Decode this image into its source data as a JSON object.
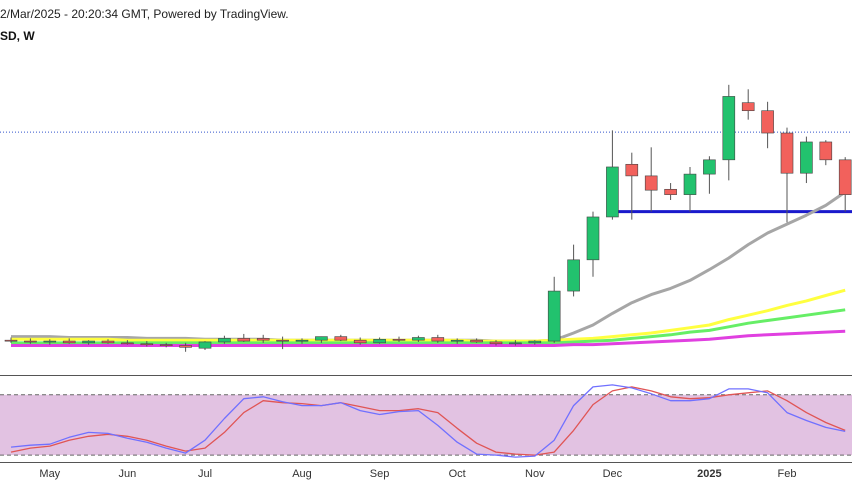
{
  "chart_data": [
    {
      "type": "candlestick",
      "title": "2/Mar/2025 - 20:20:34 GMT, Powered by TradingView.",
      "subtitle": "SD, W",
      "categories": [
        null,
        null,
        "May",
        null,
        null,
        null,
        "Jun",
        null,
        null,
        null,
        "Jul",
        null,
        null,
        null,
        null,
        "Aug",
        null,
        null,
        null,
        "Sep",
        null,
        null,
        null,
        "Oct",
        null,
        null,
        null,
        "Nov",
        null,
        null,
        null,
        "Dec",
        null,
        null,
        null,
        null,
        "2025",
        null,
        null,
        null,
        "Feb",
        null,
        null,
        null
      ],
      "open": [
        0.53,
        0.52,
        0.51,
        0.52,
        0.5,
        0.52,
        0.5,
        0.49,
        0.48,
        0.47,
        0.44,
        0.51,
        0.55,
        0.55,
        0.53,
        0.52,
        0.53,
        0.57,
        0.53,
        0.5,
        0.54,
        0.53,
        0.56,
        0.52,
        0.53,
        0.51,
        0.49,
        0.5,
        0.52,
        1.08,
        1.43,
        1.91,
        2.5,
        2.37,
        2.22,
        2.16,
        2.39,
        2.55,
        3.19,
        3.1,
        2.85,
        2.4,
        2.75,
        2.55
      ],
      "high": [
        0.56,
        0.55,
        0.54,
        0.55,
        0.53,
        0.54,
        0.53,
        0.52,
        0.5,
        0.5,
        0.52,
        0.58,
        0.6,
        0.59,
        0.57,
        0.55,
        0.57,
        0.59,
        0.56,
        0.56,
        0.57,
        0.58,
        0.59,
        0.55,
        0.55,
        0.53,
        0.53,
        0.53,
        1.24,
        1.6,
        1.97,
        2.88,
        2.63,
        2.69,
        2.29,
        2.47,
        2.59,
        3.39,
        3.34,
        3.2,
        2.91,
        2.81,
        2.77,
        2.58
      ],
      "low": [
        0.5,
        0.49,
        0.48,
        0.49,
        0.48,
        0.49,
        0.48,
        0.46,
        0.45,
        0.4,
        0.42,
        0.49,
        0.51,
        0.5,
        0.43,
        0.49,
        0.5,
        0.52,
        0.48,
        0.49,
        0.51,
        0.51,
        0.5,
        0.49,
        0.5,
        0.47,
        0.47,
        0.48,
        0.5,
        1.02,
        1.24,
        1.88,
        1.88,
        1.97,
        2.1,
        1.97,
        2.17,
        2.32,
        3.0,
        2.68,
        1.85,
        2.29,
        2.49,
        1.97
      ],
      "close": [
        0.52,
        0.51,
        0.52,
        0.5,
        0.52,
        0.5,
        0.49,
        0.48,
        0.47,
        0.45,
        0.51,
        0.55,
        0.52,
        0.53,
        0.52,
        0.53,
        0.57,
        0.53,
        0.5,
        0.54,
        0.53,
        0.56,
        0.52,
        0.53,
        0.51,
        0.49,
        0.5,
        0.52,
        1.08,
        1.43,
        1.91,
        2.47,
        2.37,
        2.21,
        2.16,
        2.39,
        2.55,
        3.26,
        3.1,
        2.85,
        2.4,
        2.75,
        2.55,
        2.16
      ],
      "up_color": "#22c26e",
      "down_color": "#f2615c",
      "lines": [
        {
          "color": "#a6a6a6",
          "values": [
            0.57,
            0.57,
            0.57,
            0.56,
            0.56,
            0.56,
            0.56,
            0.55,
            0.55,
            0.55,
            0.54,
            0.54,
            0.54,
            0.54,
            0.53,
            0.53,
            0.53,
            0.53,
            0.53,
            0.53,
            0.53,
            0.53,
            0.53,
            0.53,
            0.53,
            0.52,
            0.52,
            0.52,
            0.53,
            0.61,
            0.7,
            0.83,
            0.95,
            1.04,
            1.11,
            1.2,
            1.32,
            1.45,
            1.6,
            1.73,
            1.83,
            1.93,
            2.04,
            2.19
          ]
        },
        {
          "color": "#ffff40",
          "values": [
            0.54,
            0.54,
            0.54,
            0.54,
            0.54,
            0.54,
            0.53,
            0.53,
            0.53,
            0.53,
            0.53,
            0.53,
            0.53,
            0.53,
            0.53,
            0.53,
            0.53,
            0.53,
            0.53,
            0.53,
            0.53,
            0.53,
            0.53,
            0.53,
            0.52,
            0.52,
            0.52,
            0.52,
            0.53,
            0.54,
            0.55,
            0.57,
            0.59,
            0.61,
            0.64,
            0.67,
            0.7,
            0.76,
            0.81,
            0.86,
            0.92,
            0.97,
            1.03,
            1.09
          ]
        },
        {
          "color": "#66ee66",
          "values": [
            0.5,
            0.5,
            0.5,
            0.5,
            0.5,
            0.5,
            0.5,
            0.5,
            0.5,
            0.5,
            0.5,
            0.5,
            0.5,
            0.5,
            0.5,
            0.5,
            0.5,
            0.5,
            0.5,
            0.5,
            0.5,
            0.5,
            0.5,
            0.5,
            0.5,
            0.5,
            0.5,
            0.5,
            0.5,
            0.51,
            0.52,
            0.53,
            0.55,
            0.57,
            0.59,
            0.62,
            0.64,
            0.68,
            0.72,
            0.75,
            0.78,
            0.81,
            0.84,
            0.87
          ]
        },
        {
          "color": "#e040e0",
          "values": [
            0.47,
            0.47,
            0.47,
            0.47,
            0.47,
            0.47,
            0.47,
            0.47,
            0.47,
            0.47,
            0.47,
            0.47,
            0.47,
            0.47,
            0.47,
            0.47,
            0.47,
            0.47,
            0.47,
            0.47,
            0.47,
            0.47,
            0.47,
            0.47,
            0.47,
            0.47,
            0.47,
            0.47,
            0.47,
            0.48,
            0.48,
            0.49,
            0.5,
            0.51,
            0.52,
            0.53,
            0.54,
            0.56,
            0.58,
            0.59,
            0.6,
            0.61,
            0.62,
            0.63
          ]
        }
      ],
      "levels": [
        {
          "value": 2.86,
          "color": "#3355cc",
          "dashed": true,
          "start": 0
        },
        {
          "value": 1.97,
          "color": "#1a1acc",
          "dashed": false,
          "start": 31
        }
      ],
      "ylim": [
        0.14,
        4.34
      ]
    },
    {
      "type": "line",
      "series": [
        {
          "color": "#7070ff",
          "values": [
            27.9,
            29.8,
            30.8,
            37.7,
            42.6,
            41.6,
            36.7,
            32.8,
            26.9,
            22.0,
            34.8,
            56.4,
            76.1,
            78.0,
            73.1,
            69.2,
            69.2,
            72.1,
            64.3,
            60.4,
            63.3,
            64.3,
            49.5,
            32.8,
            21.0,
            20.0,
            18.0,
            19.0,
            34.8,
            69.2,
            87.9,
            89.8,
            86.9,
            81.0,
            74.1,
            74.1,
            76.1,
            85.9,
            85.9,
            82.0,
            62.3,
            54.4,
            47.5,
            43.6
          ]
        },
        {
          "color": "#e05555",
          "values": [
            23.0,
            26.9,
            28.9,
            34.8,
            38.7,
            40.7,
            38.7,
            34.8,
            28.9,
            23.9,
            26.9,
            42.6,
            62.3,
            74.1,
            72.1,
            71.2,
            69.2,
            72.1,
            68.2,
            64.3,
            64.3,
            66.2,
            62.3,
            46.6,
            31.8,
            23.0,
            21.0,
            20.0,
            23.0,
            44.6,
            70.2,
            83.9,
            87.9,
            83.9,
            78.0,
            76.1,
            77.1,
            80.0,
            82.0,
            83.9,
            74.1,
            62.3,
            52.4,
            44.6
          ]
        }
      ],
      "band": [
        20,
        80
      ],
      "band_color": "#e2c2e2",
      "ylim": [
        13.1,
        98.7
      ]
    }
  ]
}
